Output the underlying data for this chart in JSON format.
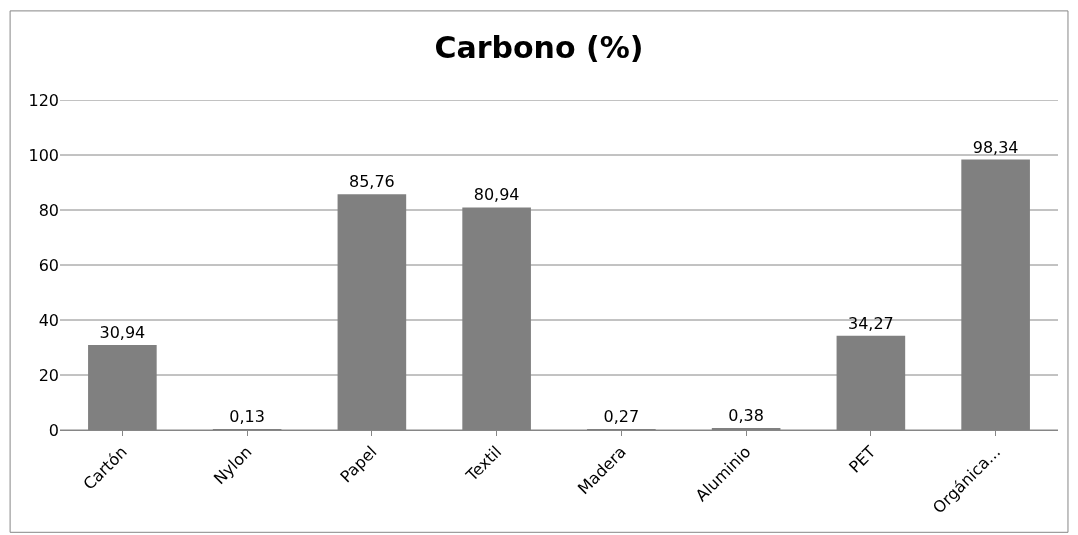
{
  "chart_data": {
    "type": "bar",
    "title": "Carbono (%)",
    "categories": [
      "Cartón",
      "Nylon",
      "Papel",
      "Textil",
      "Madera",
      "Aluminio",
      "PET",
      "Orgánica..."
    ],
    "values": [
      30.94,
      0.13,
      85.76,
      80.94,
      0.27,
      0.38,
      34.27,
      98.34
    ],
    "value_labels": [
      "30,94",
      "0,13",
      "85,76",
      "80,94",
      "0,27",
      "0,38",
      "34,27",
      "98,34"
    ],
    "color": "#808080",
    "ylim": [
      0,
      120
    ],
    "yticks": [
      0,
      20,
      40,
      60,
      80,
      100,
      120
    ],
    "grid": "y"
  }
}
